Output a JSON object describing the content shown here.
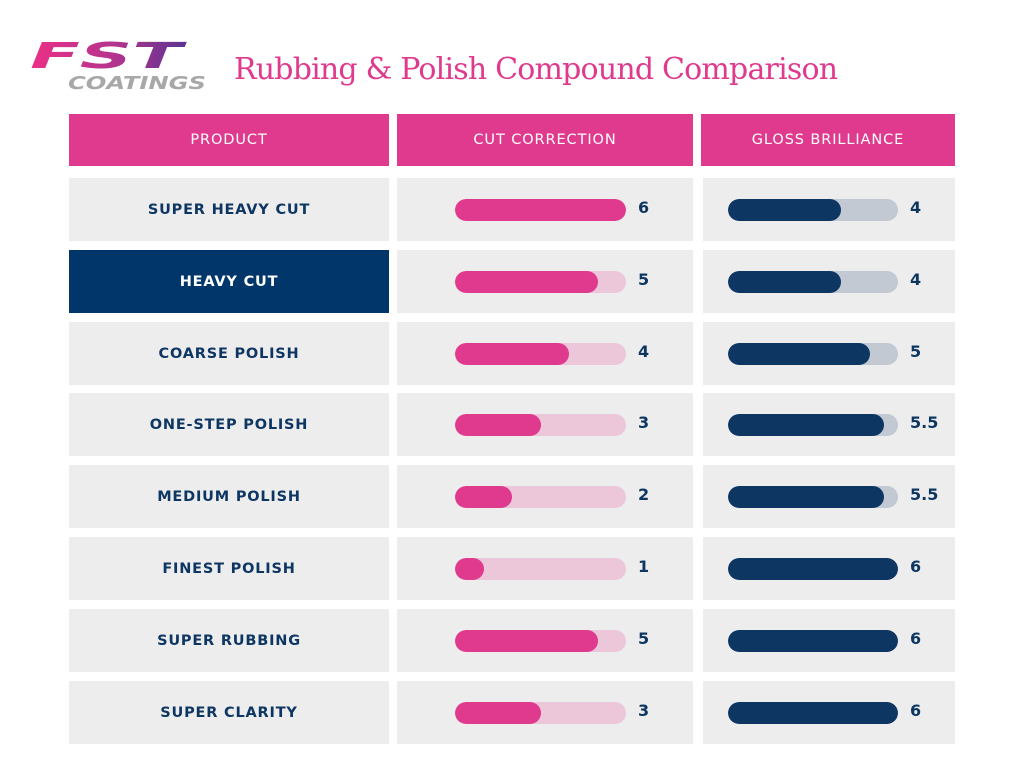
{
  "brand": {
    "logo_top": "FST",
    "logo_bottom": "COATINGS"
  },
  "colors": {
    "pink": "#df3a8d",
    "navy": "#0e3663",
    "highlight": "#00366a",
    "row_bg": "#ededed"
  },
  "chart_data": {
    "type": "bar",
    "orientation": "horizontal",
    "title": "Rubbing & Polish Compound Comparison",
    "headers": [
      "PRODUCT",
      "CUT CORRECTION",
      "GLOSS BRILLIANCE"
    ],
    "categories": [
      "SUPER HEAVY CUT",
      "HEAVY CUT",
      "COARSE POLISH",
      "ONE-STEP POLISH",
      "MEDIUM POLISH",
      "FINEST POLISH",
      "SUPER RUBBING",
      "SUPER CLARITY"
    ],
    "series": [
      {
        "name": "CUT CORRECTION",
        "values": [
          6,
          5,
          4,
          3,
          2,
          1,
          5,
          3
        ]
      },
      {
        "name": "GLOSS BRILLIANCE",
        "values": [
          4,
          4,
          5,
          5.5,
          5.5,
          6,
          6,
          6
        ]
      }
    ],
    "value_labels": {
      "cut": [
        "6",
        "5",
        "4",
        "3",
        "2",
        "1",
        "5",
        "3"
      ],
      "gloss": [
        "4",
        "4",
        "5",
        "5.5",
        "5.5",
        "6",
        "6",
        "6"
      ]
    },
    "xlim": [
      0,
      6
    ],
    "highlighted_row": "HEAVY CUT"
  }
}
